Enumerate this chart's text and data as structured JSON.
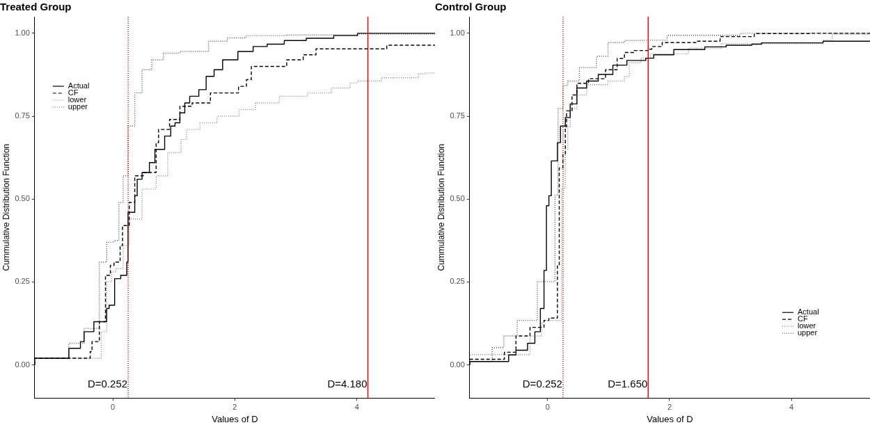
{
  "chart_data": [
    {
      "type": "step",
      "title": "Treated Group",
      "xlabel": "Values of D",
      "ylabel": "Cummulative Distribution Function",
      "xlim": [
        -1.28,
        5.28
      ],
      "xticks": [
        0,
        2,
        4
      ],
      "ylim": [
        -0.1,
        1.05
      ],
      "yticks": [
        {
          "value": 0,
          "label": "0.00"
        },
        {
          "value": 0.25,
          "label": "0.25"
        },
        {
          "value": 0.5,
          "label": "0.50"
        },
        {
          "value": 0.75,
          "label": "0.75"
        },
        {
          "value": 1,
          "label": "1.00"
        }
      ],
      "grid": false,
      "legend": "top left",
      "marker": "none",
      "series": [
        {
          "name": "Actual",
          "color": "#000000",
          "line_style": "solid",
          "x": [
            -1.28,
            -0.72,
            -0.53,
            -0.47,
            -0.31,
            -0.1,
            -0.06,
            0.03,
            0.13,
            0.23,
            0.25,
            0.36,
            0.4,
            0.48,
            0.6,
            0.69,
            0.85,
            0.95,
            1.02,
            1.1,
            1.18,
            1.26,
            1.41,
            1.53,
            1.66,
            1.8,
            2.05,
            2.3,
            2.53,
            2.81,
            3.17,
            3.62,
            4.01,
            4.55,
            5.28
          ],
          "values": [
            0,
            0.02,
            0.05,
            0.07,
            0.1,
            0.13,
            0.17,
            0.18,
            0.26,
            0.27,
            0.31,
            0.46,
            0.51,
            0.56,
            0.58,
            0.61,
            0.65,
            0.69,
            0.72,
            0.73,
            0.76,
            0.79,
            0.81,
            0.83,
            0.87,
            0.89,
            0.92,
            0.945,
            0.96,
            0.967,
            0.978,
            0.985,
            0.993,
            1.0,
            1.0
          ]
        },
        {
          "name": "CF",
          "color": "#000000",
          "line_style": "dashed",
          "x": [
            -1.28,
            -0.37,
            -0.34,
            -0.22,
            -0.12,
            -0.04,
            0.02,
            0.12,
            0.16,
            0.27,
            0.36,
            0.5,
            0.71,
            0.75,
            0.93,
            1.1,
            1.3,
            1.6,
            2.06,
            2.19,
            2.27,
            2.85,
            3.12,
            3.33,
            4.49,
            4.59,
            5.28
          ],
          "values": [
            0,
            0.02,
            0.04,
            0.07,
            0.13,
            0.27,
            0.3,
            0.31,
            0.36,
            0.42,
            0.49,
            0.57,
            0.58,
            0.67,
            0.71,
            0.74,
            0.78,
            0.79,
            0.82,
            0.84,
            0.86,
            0.9,
            0.92,
            0.935,
            0.953,
            0.964,
            0.964
          ]
        },
        {
          "name": "lower",
          "color": "#888888",
          "line_style": "dotted",
          "x": [
            -1.28,
            -0.19,
            -0.1,
            -0.02,
            0.05,
            0.17,
            0.27,
            0.48,
            0.71,
            0.9,
            1.12,
            1.21,
            1.43,
            1.71,
            2.07,
            2.34,
            2.73,
            3.19,
            3.58,
            3.89,
            4.01,
            4.4,
            5.01,
            5.13,
            5.28
          ],
          "values": [
            0,
            0.02,
            0.1,
            0.25,
            0.28,
            0.29,
            0.36,
            0.44,
            0.53,
            0.57,
            0.64,
            0.68,
            0.71,
            0.73,
            0.75,
            0.77,
            0.79,
            0.81,
            0.82,
            0.835,
            0.85,
            0.856,
            0.866,
            0.878,
            0.88
          ]
        },
        {
          "name": "upper",
          "color": "#555555",
          "line_style": "dotted",
          "x": [
            -1.28,
            -0.72,
            -0.47,
            -0.22,
            -0.1,
            0.02,
            0.1,
            0.17,
            0.25,
            0.36,
            0.48,
            0.64,
            0.83,
            1.1,
            1.57,
            1.88,
            2.18,
            2.84,
            4.01,
            5.28
          ],
          "values": [
            0,
            0.02,
            0.065,
            0.11,
            0.31,
            0.37,
            0.375,
            0.49,
            0.57,
            0.72,
            0.82,
            0.89,
            0.92,
            0.94,
            0.945,
            0.976,
            0.986,
            0.993,
            0.995,
            0.998
          ]
        }
      ],
      "ref_lines": [
        {
          "axis": "x",
          "value": 0.252,
          "color": "#ff0000",
          "line_style": "dotted"
        },
        {
          "axis": "x",
          "value": 4.18,
          "color": "#ff0000",
          "line_style": "solid"
        }
      ],
      "annotations": [
        {
          "text": "D=0.252",
          "x": 0.252,
          "y": -0.06
        },
        {
          "text": "D=4.180",
          "x": 4.18,
          "y": -0.06
        }
      ]
    },
    {
      "type": "step",
      "title": "Control Group",
      "xlabel": "Values of D",
      "ylabel": "Cummulative Distribution Function",
      "xlim": [
        -1.28,
        5.29
      ],
      "xticks": [
        0,
        2,
        4
      ],
      "ylim": [
        -0.1,
        1.05
      ],
      "yticks": [
        {
          "value": 0,
          "label": "0.00"
        },
        {
          "value": 0.25,
          "label": "0.25"
        },
        {
          "value": 0.5,
          "label": "0.50"
        },
        {
          "value": 0.75,
          "label": "0.75"
        },
        {
          "value": 1,
          "label": "1.00"
        }
      ],
      "grid": false,
      "legend": "bottom right",
      "marker": "none",
      "series": [
        {
          "name": "Actual",
          "color": "#000000",
          "line_style": "solid",
          "x": [
            -1.28,
            -0.64,
            -0.52,
            -0.33,
            -0.21,
            -0.12,
            -0.06,
            -0.02,
            0.02,
            0.06,
            0.16,
            0.21,
            0.29,
            0.37,
            0.48,
            0.64,
            0.83,
            1.07,
            1.3,
            1.61,
            1.74,
            2.07,
            2.58,
            2.93,
            3.35,
            3.51,
            4.52,
            4.59,
            5.29
          ],
          "values": [
            0,
            0.01,
            0.03,
            0.044,
            0.065,
            0.1,
            0.17,
            0.285,
            0.48,
            0.51,
            0.615,
            0.67,
            0.72,
            0.746,
            0.787,
            0.835,
            0.856,
            0.876,
            0.904,
            0.918,
            0.925,
            0.935,
            0.951,
            0.959,
            0.964,
            0.967,
            0.971,
            0.976,
            0.976
          ]
        },
        {
          "name": "CF",
          "color": "#000000",
          "line_style": "dashed",
          "x": [
            -1.28,
            -0.71,
            -0.52,
            -0.29,
            -0.06,
            0.02,
            0.16,
            0.19,
            0.25,
            0.29,
            0.31,
            0.4,
            0.48,
            0.67,
            0.95,
            1.14,
            1.26,
            1.42,
            1.65,
            1.71,
            1.88,
            2.46,
            2.83,
            3.39,
            4.32,
            5.29
          ],
          "values": [
            0,
            0.017,
            0.038,
            0.087,
            0.113,
            0.134,
            0.141,
            0.3,
            0.594,
            0.636,
            0.718,
            0.766,
            0.814,
            0.849,
            0.863,
            0.89,
            0.924,
            0.942,
            0.948,
            0.952,
            0.96,
            0.972,
            0.976,
            0.99,
            0.999,
            1.0
          ]
        },
        {
          "name": "lower",
          "color": "#888888",
          "line_style": "dotted",
          "x": [
            -1.28,
            -0.29,
            -0.1,
            -0.06,
            0.23,
            0.29,
            0.33,
            0.37,
            0.48,
            0.64,
            0.99,
            1.26,
            1.34,
            1.53,
            1.69,
            2.31,
            2.85,
            4.52,
            4.67,
            5.29
          ],
          "values": [
            0,
            0.031,
            0.087,
            0.127,
            0.134,
            0.533,
            0.649,
            0.718,
            0.773,
            0.814,
            0.845,
            0.856,
            0.869,
            0.911,
            0.925,
            0.938,
            0.955,
            0.969,
            0.979,
            0.997
          ]
        },
        {
          "name": "upper",
          "color": "#555555",
          "line_style": "dotted",
          "x": [
            -1.28,
            -0.91,
            -0.72,
            -0.5,
            -0.17,
            0.12,
            0.17,
            0.25,
            0.33,
            0.52,
            0.8,
            0.99,
            1.26,
            1.57,
            1.96,
            3.16,
            4.28,
            5.29
          ],
          "values": [
            0,
            0.01,
            0.052,
            0.087,
            0.134,
            0.251,
            0.512,
            0.773,
            0.842,
            0.856,
            0.897,
            0.931,
            0.972,
            0.978,
            0.979,
            0.994,
            1.0,
            1.0
          ]
        }
      ],
      "ref_lines": [
        {
          "axis": "x",
          "value": 0.252,
          "color": "#ff0000",
          "line_style": "dotted"
        },
        {
          "axis": "x",
          "value": 1.65,
          "color": "#ff0000",
          "line_style": "solid"
        }
      ],
      "annotations": [
        {
          "text": "D=0.252",
          "x": 0.252,
          "y": -0.06
        },
        {
          "text": "D=1.650",
          "x": 1.65,
          "y": -0.06
        }
      ]
    }
  ]
}
